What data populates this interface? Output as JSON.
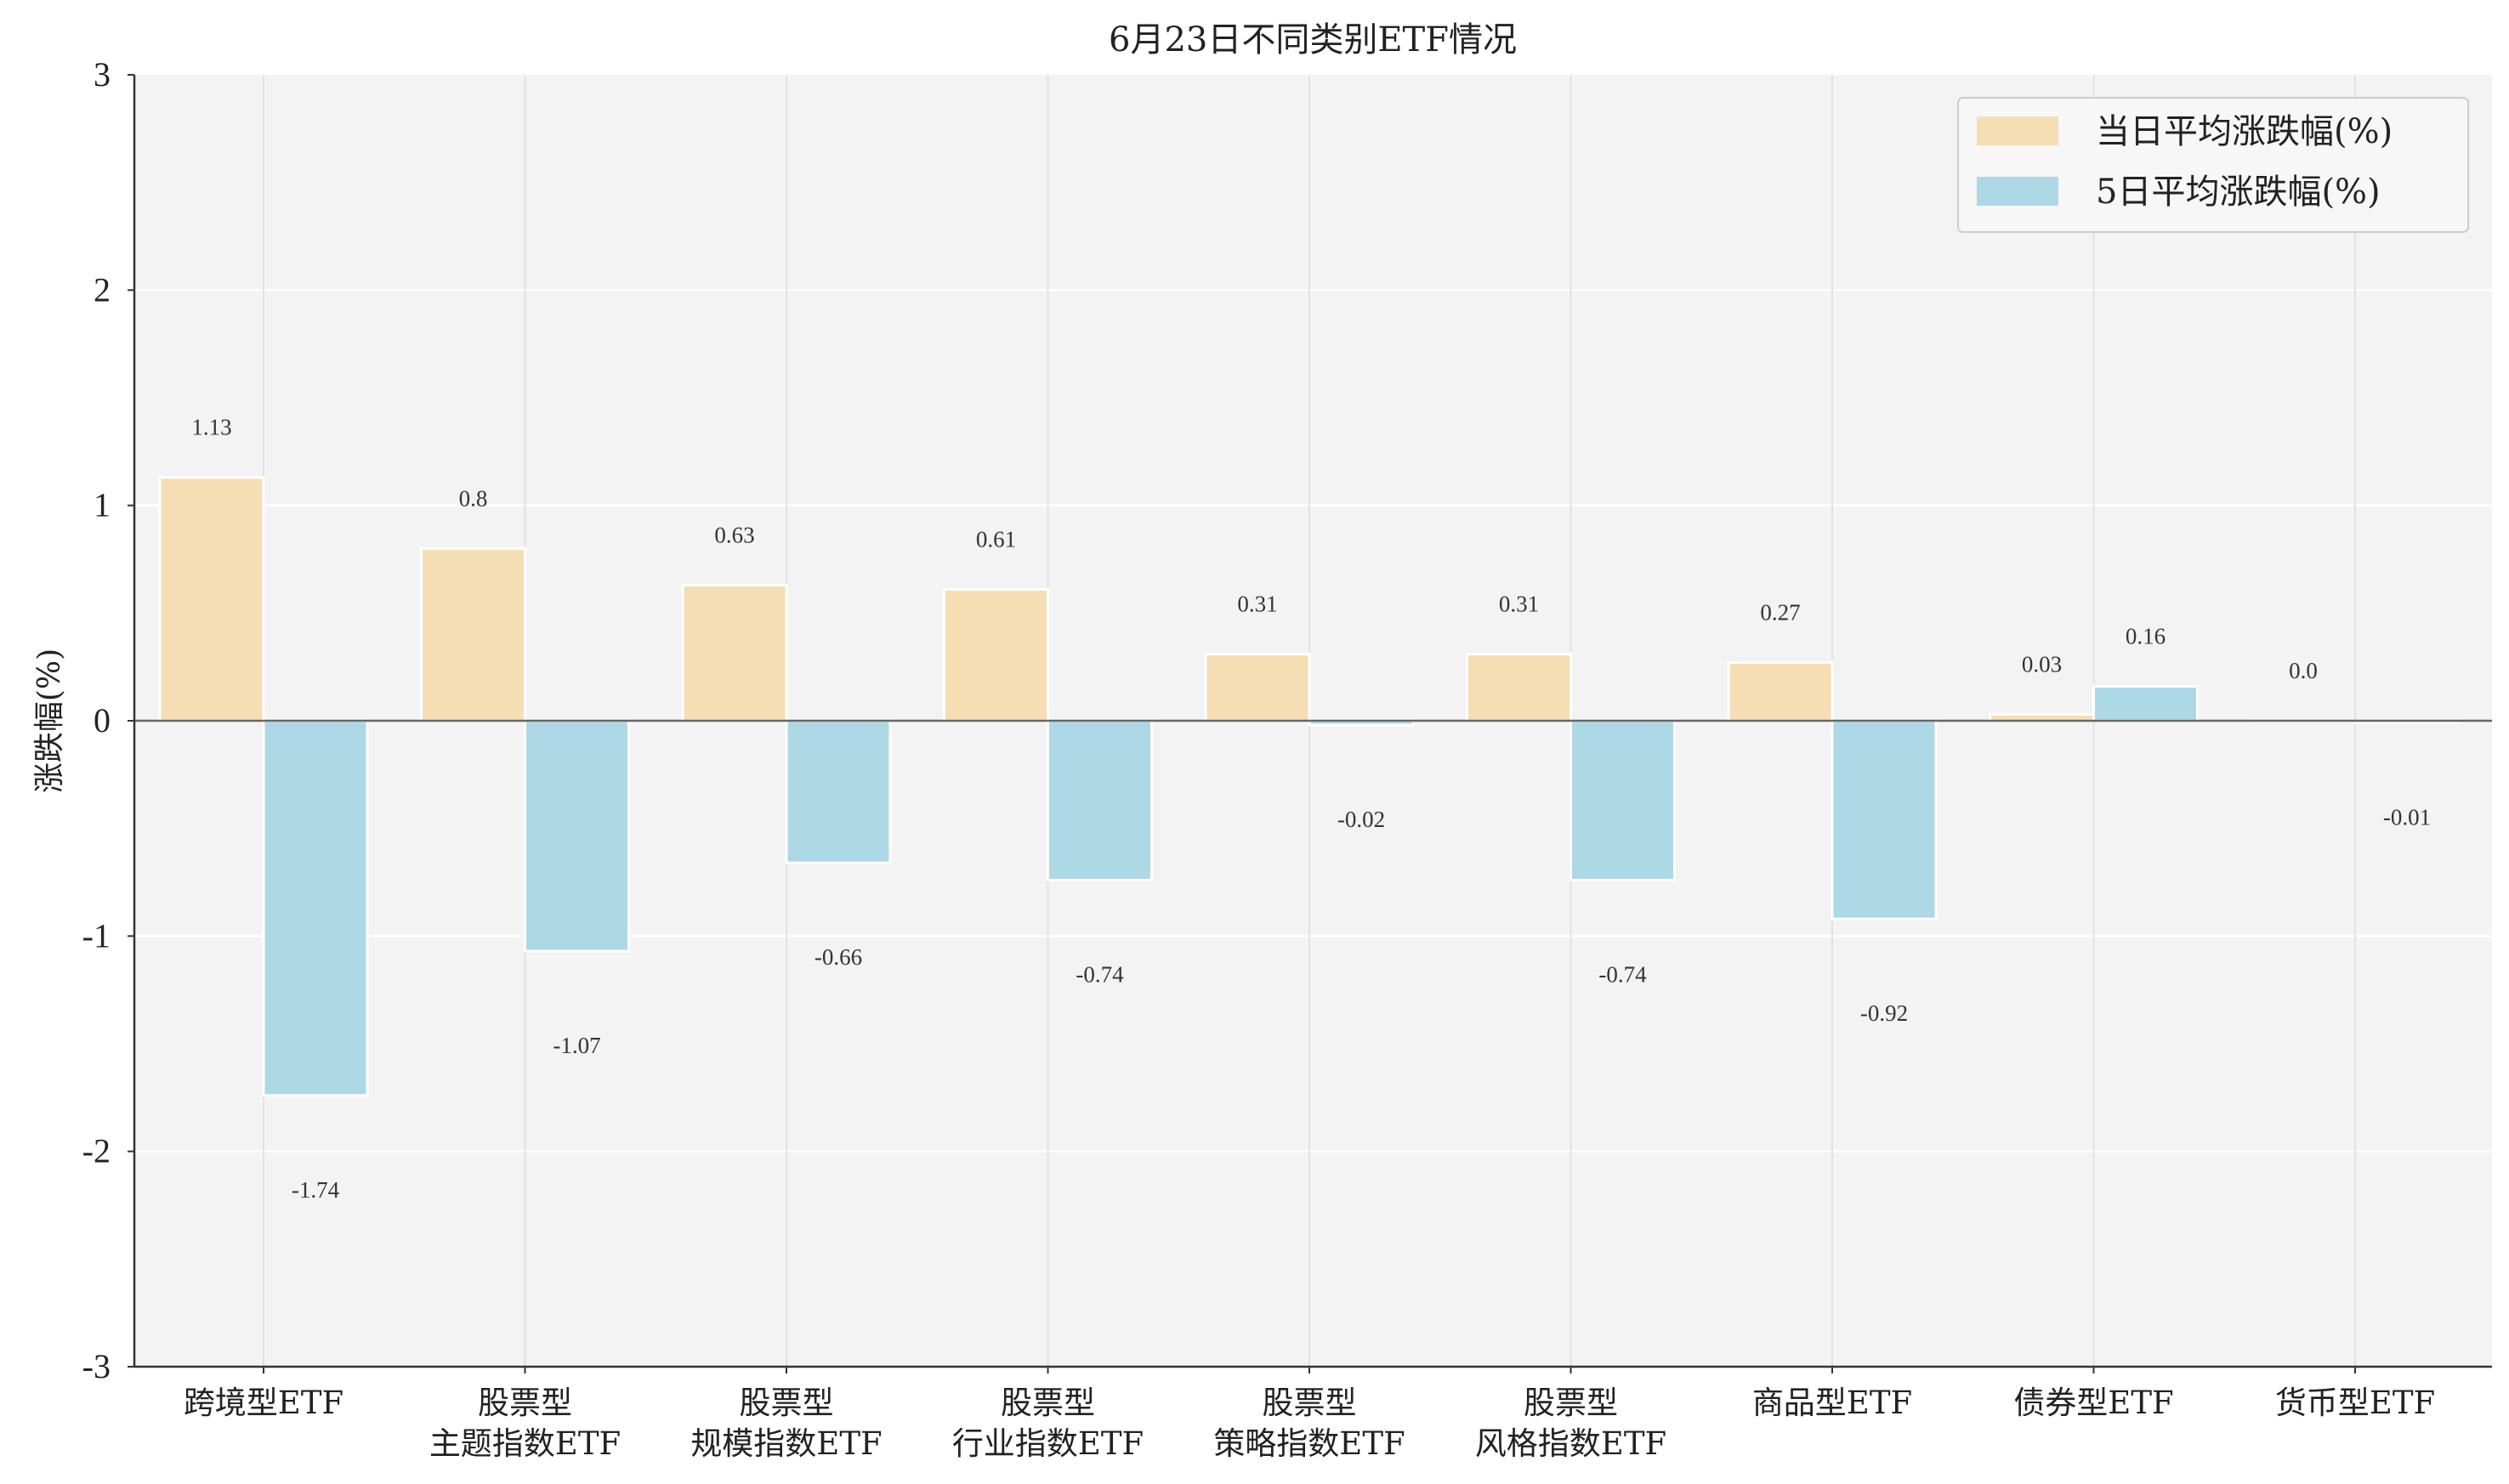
{
  "chart_data": {
    "type": "bar",
    "title": "6月23日不同类别ETF情况",
    "ylabel": "涨跌幅(%)",
    "xlabel": "",
    "ylim": [
      -3,
      3
    ],
    "yticks": [
      "3",
      "2",
      "1",
      "0",
      "-1",
      "-2",
      "-3"
    ],
    "grid": true,
    "legend_position": "top-right",
    "categories": [
      [
        "跨境型ETF"
      ],
      [
        "股票型",
        "主题指数ETF"
      ],
      [
        "股票型",
        "规模指数ETF"
      ],
      [
        "股票型",
        "行业指数ETF"
      ],
      [
        "股票型",
        "策略指数ETF"
      ],
      [
        "股票型",
        "风格指数ETF"
      ],
      [
        "商品型ETF"
      ],
      [
        "债券型ETF"
      ],
      [
        "货币型ETF"
      ]
    ],
    "series": [
      {
        "name": "当日平均涨跌幅(%)",
        "color": "#f5deb3",
        "values": [
          1.13,
          0.8,
          0.63,
          0.61,
          0.31,
          0.31,
          0.27,
          0.03,
          0.0
        ],
        "labels": [
          "1.13",
          "0.8",
          "0.63",
          "0.61",
          "0.31",
          "0.31",
          "0.27",
          "0.03",
          "0.0"
        ]
      },
      {
        "name": "5日平均涨跌幅(%)",
        "color": "#add8e6",
        "values": [
          -1.74,
          -1.07,
          -0.66,
          -0.74,
          -0.02,
          -0.74,
          -0.92,
          0.16,
          -0.01
        ],
        "labels": [
          "-1.74",
          "-1.07",
          "-0.66",
          "-0.74",
          "-0.02",
          "-0.74",
          "-0.92",
          "0.16",
          "-0.01"
        ]
      }
    ]
  }
}
